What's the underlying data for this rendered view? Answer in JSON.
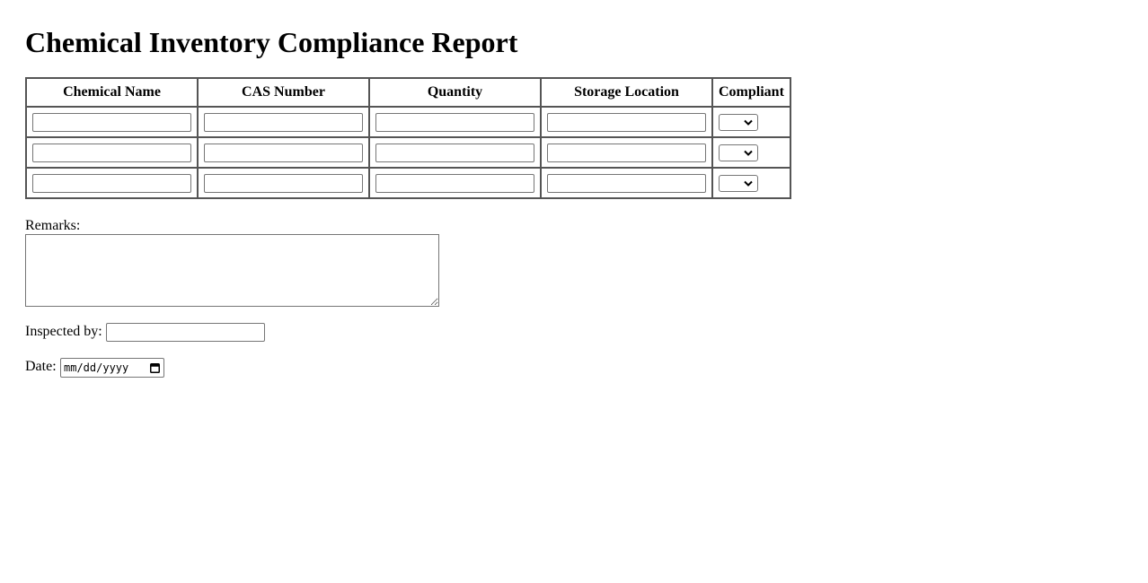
{
  "page_title": "Chemical Inventory Compliance Report",
  "table": {
    "headers": [
      "Chemical Name",
      "CAS Number",
      "Quantity",
      "Storage Location",
      "Compliant"
    ],
    "rows": [
      {
        "chemical_name": "",
        "cas_number": "",
        "quantity": "",
        "storage_location": "",
        "compliant": ""
      },
      {
        "chemical_name": "",
        "cas_number": "",
        "quantity": "",
        "storage_location": "",
        "compliant": ""
      },
      {
        "chemical_name": "",
        "cas_number": "",
        "quantity": "",
        "storage_location": "",
        "compliant": ""
      }
    ]
  },
  "remarks": {
    "label": "Remarks:",
    "value": ""
  },
  "inspected_by": {
    "label": "Inspected by:",
    "value": ""
  },
  "date": {
    "label": "Date:",
    "placeholder": "mm/dd/yyyy",
    "icon": "calendar-icon"
  }
}
